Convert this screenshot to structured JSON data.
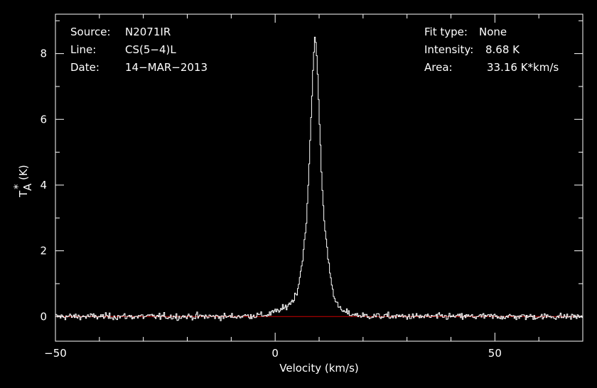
{
  "chart_data": {
    "type": "line",
    "xlabel": "Velocity (km/s)",
    "ylabel_main": "T",
    "ylabel_sub": "A",
    "ylabel_sup": "*",
    "ylabel_unit": "(K)",
    "xlim": [
      -50,
      70
    ],
    "ylim": [
      -0.75,
      9.2
    ],
    "xticks": [
      -50,
      0,
      50
    ],
    "xtick_labels": [
      "−50",
      "0",
      "50"
    ],
    "yticks": [
      0,
      2,
      4,
      6,
      8
    ],
    "ytick_labels": [
      "0",
      "2",
      "4",
      "6",
      "8"
    ],
    "baseline": 0,
    "grid": false,
    "colors": {
      "background": "#000000",
      "axes": "#ffffff",
      "spectrum": "#ffffff",
      "baseline": "#cc0000"
    },
    "series": [
      {
        "x": [
          -50,
          -30,
          -10,
          -2,
          2,
          4,
          5,
          6,
          7,
          7.5,
          8,
          8.5,
          9,
          9.5,
          10,
          10.5,
          11,
          12,
          13,
          14,
          15,
          17,
          20,
          30,
          50,
          70
        ],
        "y": [
          0,
          0,
          0,
          0.05,
          0.25,
          0.5,
          0.8,
          1.6,
          2.8,
          4.2,
          5.8,
          7.5,
          8.68,
          7.7,
          5.8,
          4.2,
          3.0,
          1.7,
          0.8,
          0.35,
          0.18,
          0.08,
          0.02,
          0,
          0,
          0
        ],
        "noise_rms": 0.07
      }
    ]
  },
  "info": {
    "source_label": "Source:",
    "source_value": "N2071IR",
    "line_label": "Line:",
    "line_value": "CS(5−4)L",
    "date_label": "Date:",
    "date_value": "14−MAR−2013",
    "fit_label": "Fit type:",
    "fit_value": "None",
    "intensity_label": "Intensity:",
    "intensity_value": "8.68 K",
    "area_label": "Area:",
    "area_value": "33.16 K*km/s"
  }
}
